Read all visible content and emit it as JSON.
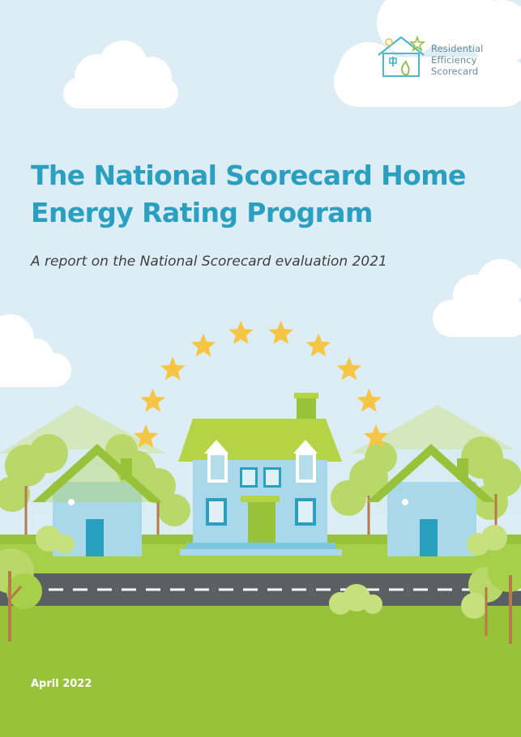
{
  "logo": {
    "line1": "Residential",
    "line2": "Efficiency",
    "line3": "Scorecard"
  },
  "title": "The National Scorecard Home Energy Rating Program",
  "subtitle": "A report on the National Scorecard evaluation 2021",
  "date": "April 2022",
  "rating": {
    "stars": 10
  },
  "colors": {
    "title": "#2a9fbf",
    "sky": "#dcedf5",
    "grass": "#98c23a",
    "roof": "#b5d445",
    "house_wall": "#a8d8ea",
    "star": "#f6c544"
  }
}
